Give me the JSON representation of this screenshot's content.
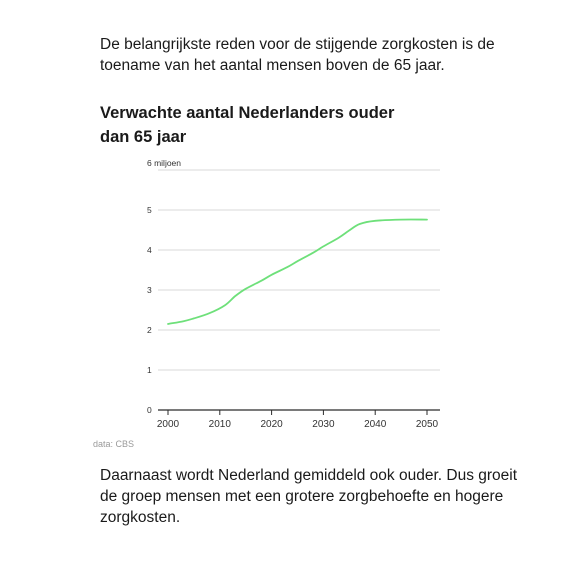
{
  "intro_text": "De belangrijkste reden voor de stijgende zorgkosten is de toename van het aantal mensen boven de 65 jaar.",
  "outro_text": "Daarnaast wordt Nederland gemiddeld ook ouder. Dus groeit de groep mensen met een grotere zorgbehoefte en hogere zorgkosten.",
  "colors": {
    "line": "#6ee07a",
    "grid": "#d8d8d8",
    "axis": "#2a2a2a",
    "tick_text": "#333333",
    "source_text": "#9a9a9a"
  },
  "chart_data": {
    "type": "line",
    "title": "Verwachte aantal Nederlanders ouder dan 65 jaar",
    "source": "data: CBS",
    "xlabel": "",
    "ylabel": "",
    "ylim": [
      0,
      6
    ],
    "xlim": [
      2000,
      2050
    ],
    "y_ticks": [
      0,
      1,
      2,
      3,
      4,
      5,
      6
    ],
    "y_tick_labels": [
      "0",
      "1",
      "2",
      "3",
      "4",
      "5",
      "6 miljoen"
    ],
    "x_ticks": [
      2000,
      2010,
      2020,
      2030,
      2040,
      2050
    ],
    "x_tick_labels": [
      "2000",
      "2010",
      "2020",
      "2030",
      "2040",
      "2050"
    ],
    "grid": true,
    "legend": "none",
    "series": [
      {
        "x": [
          2000,
          2003,
          2005,
          2008,
          2011,
          2013,
          2015,
          2018,
          2020,
          2023,
          2025,
          2028,
          2030,
          2033,
          2035,
          2037,
          2040,
          2045,
          2050
        ],
        "y": [
          2.15,
          2.22,
          2.29,
          2.42,
          2.62,
          2.85,
          3.03,
          3.23,
          3.38,
          3.57,
          3.72,
          3.93,
          4.09,
          4.31,
          4.49,
          4.65,
          4.73,
          4.76,
          4.76
        ]
      }
    ]
  }
}
